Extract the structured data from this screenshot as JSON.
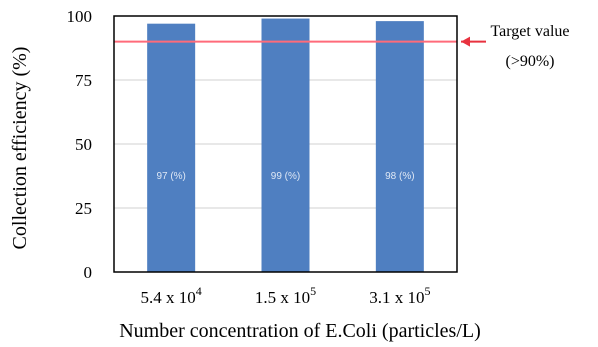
{
  "chart_data": {
    "type": "bar",
    "categories": [
      {
        "base": "5.4 x 10",
        "exp": "4"
      },
      {
        "base": "1.5 x 10",
        "exp": "5"
      },
      {
        "base": "3.1 x 10",
        "exp": "5"
      }
    ],
    "values": [
      97,
      99,
      98
    ],
    "data_labels": [
      "97 (%)",
      "99 (%)",
      "98 (%)"
    ],
    "xlabel": "Number concentration of E.Coli (particles/L)",
    "ylabel": "Collection efficiency (%)",
    "ylim": [
      0,
      100
    ],
    "yticks": [
      "0",
      "25",
      "50",
      "75",
      "100"
    ],
    "ytick_values": [
      0,
      25,
      50,
      75,
      100
    ],
    "target": {
      "value": 90,
      "label_line1": "Target value",
      "label_line2": "(>90%)",
      "color": "#ff6b7a"
    },
    "bar_color": "#4f7fc1",
    "data_label_color": "#dfe8f5",
    "grid": true
  }
}
